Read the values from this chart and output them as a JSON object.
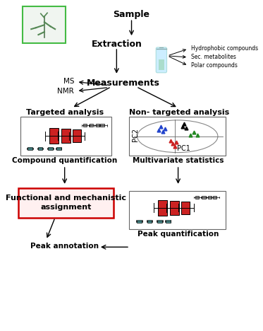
{
  "sample_label": "Sample",
  "extraction_label": "Extraction",
  "measurements_label": "Measurements",
  "ms_label": "MS",
  "nmr_label": "NMR",
  "targeted_label": "Targeted analysis",
  "nontargeted_label": "Non- targeted analysis",
  "compound_quant_label": "Compound quantification",
  "multivariate_label": "Multivariate statistics",
  "functional_label": "Functional and mechanistic\nassignment",
  "peak_annot_label": "Peak annotation",
  "peak_quant_label": "Peak quantification",
  "hydrophobic_label": "Hydrophobic compounds",
  "sec_metabolites_label": "Sec. metabolites",
  "polar_label": "Polar compounds",
  "pc1_label": "PC1",
  "pc2_label": "PC2",
  "bg_color": "#ffffff",
  "plant_box_color": "#44bb44",
  "functional_box_color": "#cc0000",
  "teal_color": "#5aabab",
  "red_color": "#cc2222",
  "gray_color": "#aaaaaa"
}
